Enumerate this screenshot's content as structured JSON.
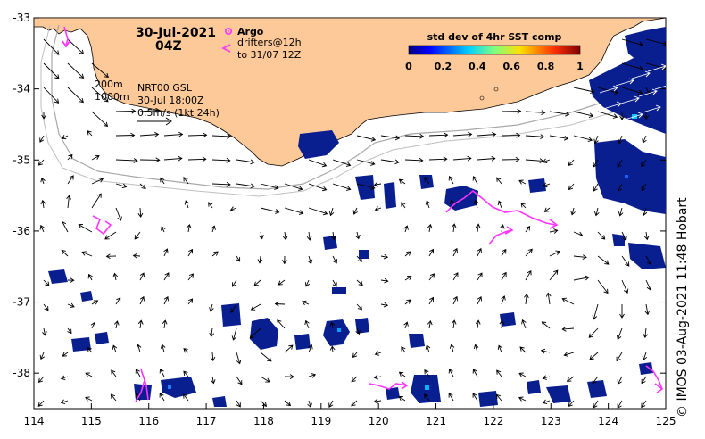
{
  "header": {
    "date": "30-Jul-2021",
    "hour": "04Z"
  },
  "legend": {
    "argo_label": "Argo",
    "drifters_line1": "drifters@12h",
    "drifters_line2": "to 31/07 12Z",
    "colorbar_title": "std dev of 4hr SST comp",
    "colorbar_ticks": [
      "0",
      "0.2",
      "0.4",
      "0.6",
      "0.8",
      "1"
    ]
  },
  "annotations": {
    "contour_200": "200m",
    "contour_1000": "1000m",
    "product": "NRT00 GSL",
    "product_time": "30-Jul 18:00Z",
    "scale_arrow": "0.5m/s (1kt 24h)"
  },
  "axes": {
    "lon_ticks": [
      "114",
      "115",
      "116",
      "117",
      "118",
      "119",
      "120",
      "121",
      "122",
      "123",
      "124",
      "125"
    ],
    "lat_ticks": [
      "-33",
      "-34",
      "-35",
      "-36",
      "-37",
      "-38"
    ],
    "lon_range": [
      114,
      125
    ],
    "lat_range": [
      -33,
      -38.5
    ]
  },
  "credit": "© IMOS 03-Aug-2021 11:48 Hobart",
  "colors": {
    "land": "#fdc998",
    "drifter": "#ff33ff",
    "sst_patch": "#0a1f8f",
    "contour": "#a0a0a0"
  }
}
